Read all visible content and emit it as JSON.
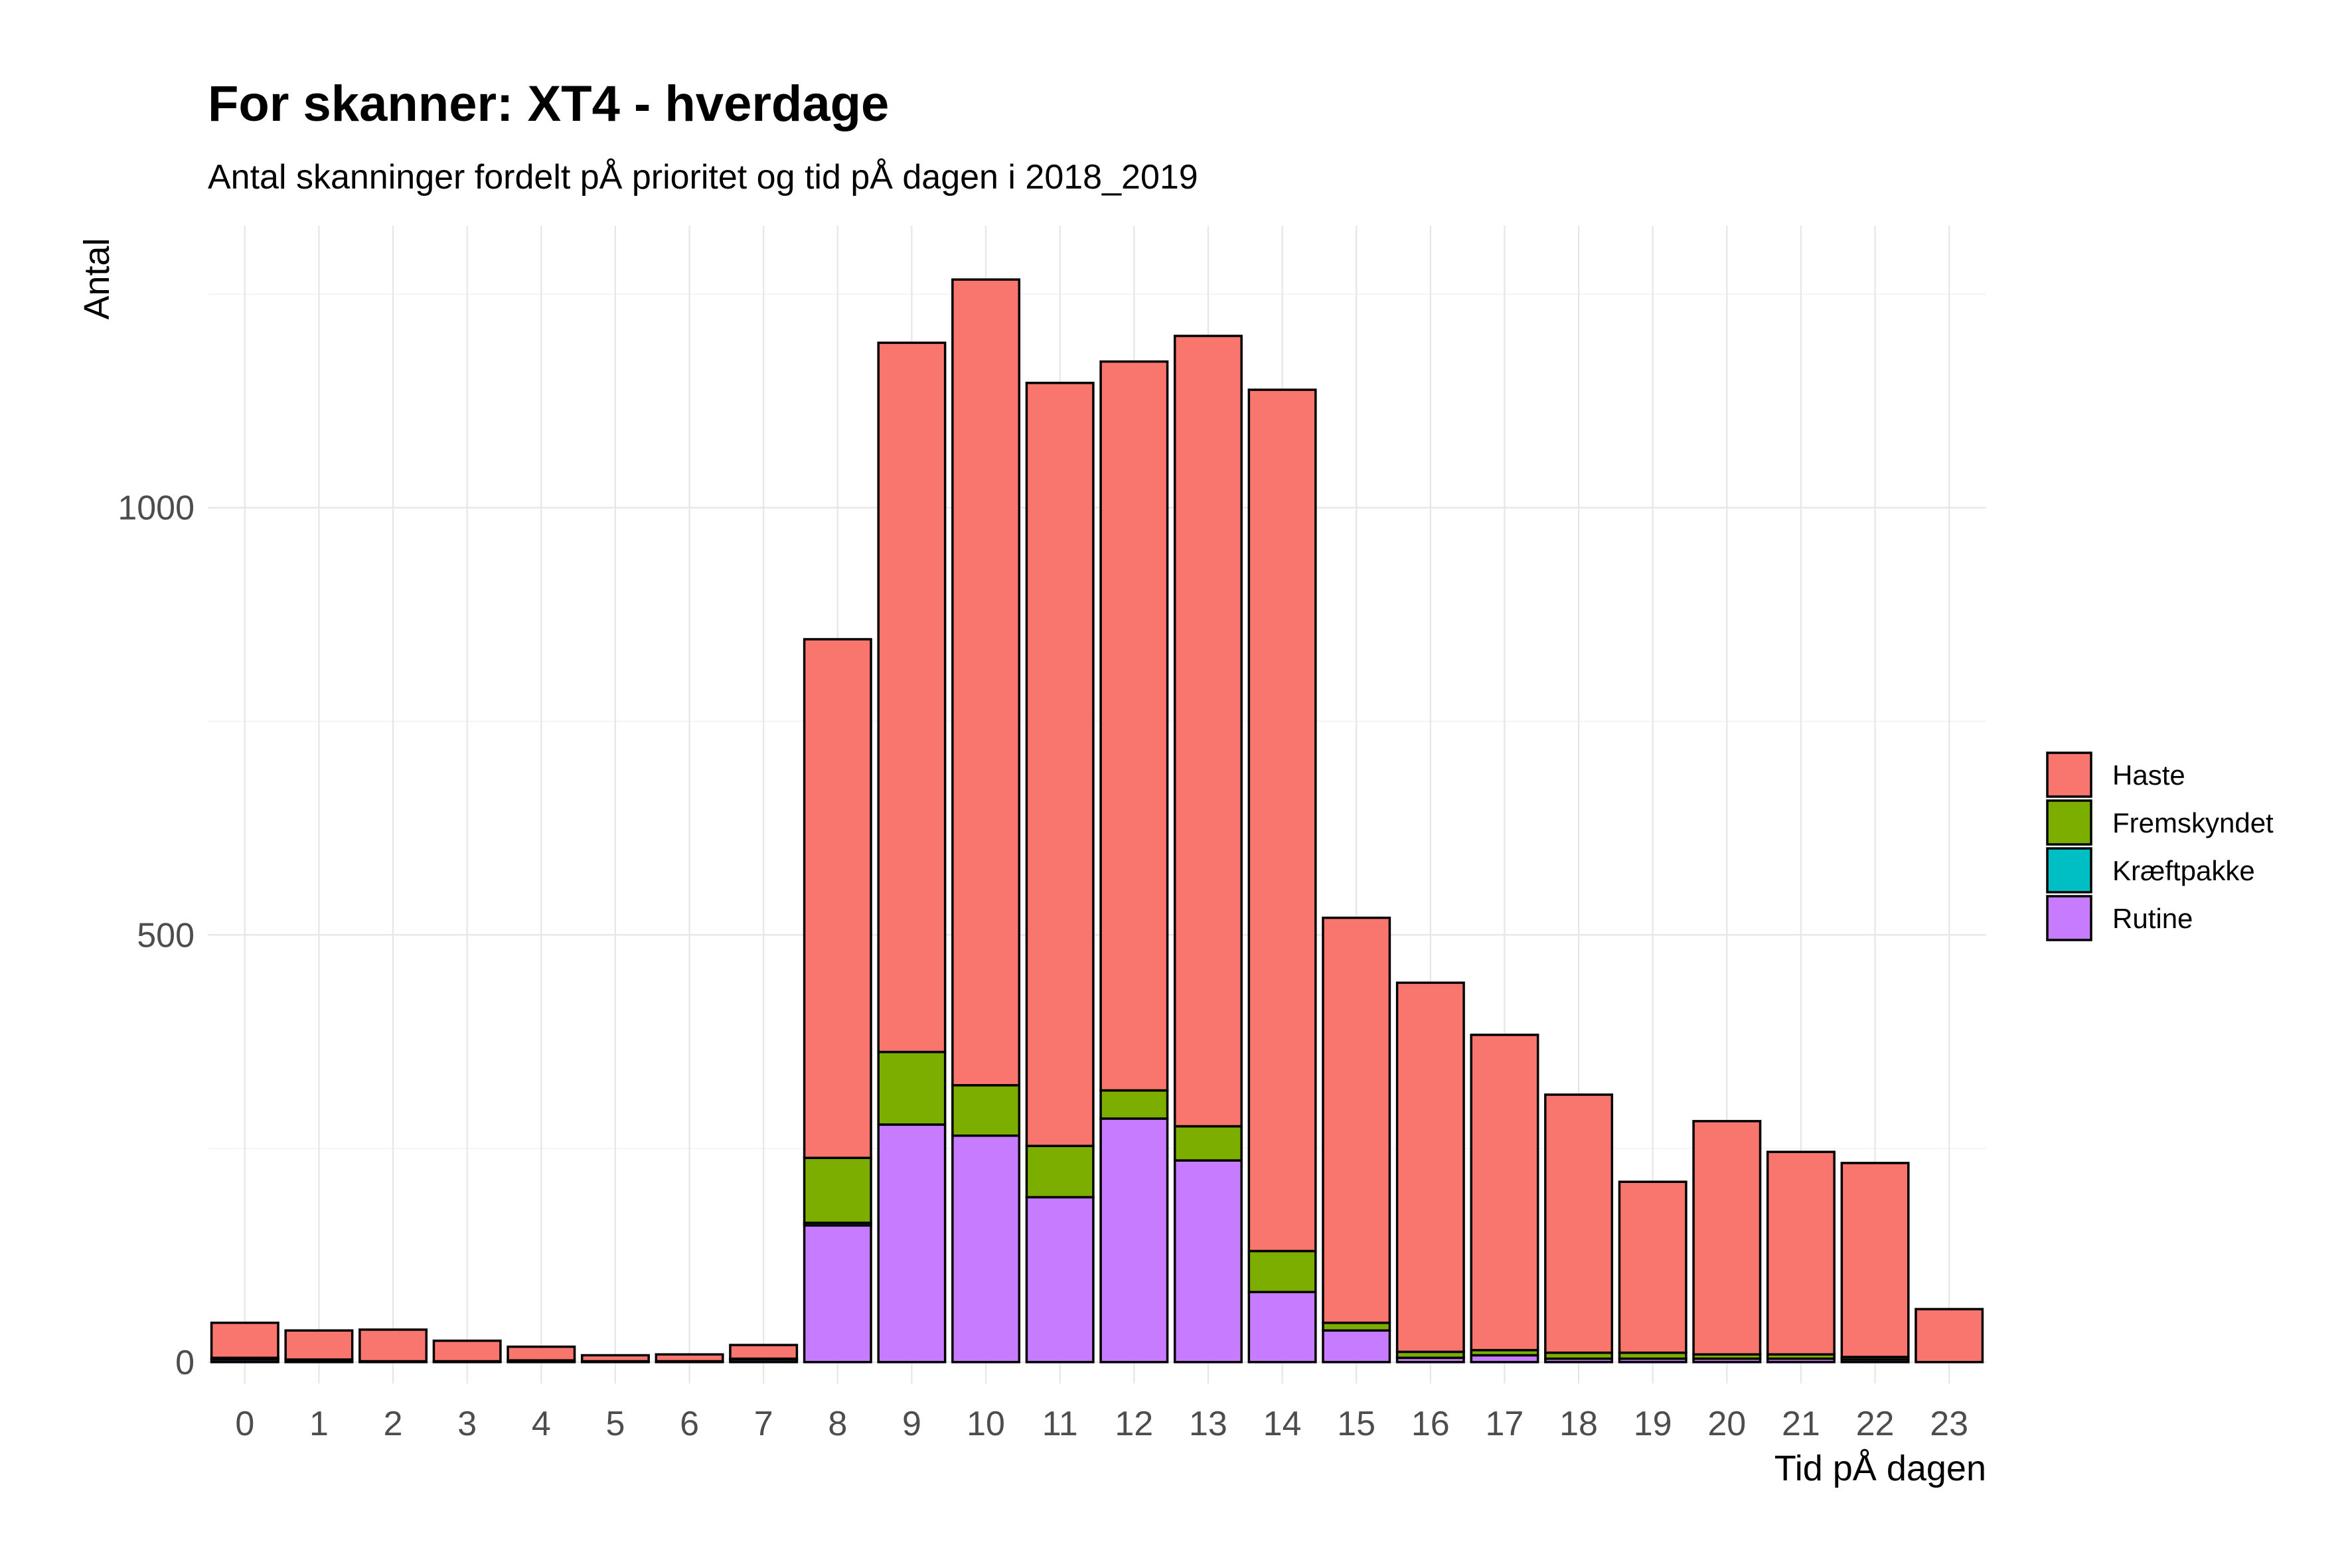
{
  "chart_data": {
    "type": "bar",
    "stacked": true,
    "title": "For skanner: XT4 - hverdage",
    "subtitle": "Antal skanninger fordelt pÅ prioritet og tid pÅ dagen i 2018_2019",
    "xlabel": "Tid pÅ dagen",
    "ylabel": "Antal",
    "categories": [
      "0",
      "1",
      "2",
      "3",
      "4",
      "5",
      "6",
      "7",
      "8",
      "9",
      "10",
      "11",
      "12",
      "13",
      "14",
      "15",
      "16",
      "17",
      "18",
      "19",
      "20",
      "21",
      "22",
      "23"
    ],
    "ylim": [
      -25,
      1330
    ],
    "yticks": [
      0,
      500,
      1000
    ],
    "grid": true,
    "legend_position": "right",
    "series": [
      {
        "name": "Rutine",
        "color": "#C77CFF",
        "values": [
          3,
          2,
          1,
          1,
          2,
          1,
          1,
          3,
          160,
          278,
          265,
          193,
          285,
          236,
          82,
          37,
          5,
          8,
          4,
          4,
          4,
          4,
          3,
          0
        ]
      },
      {
        "name": "Kræftpakke",
        "color": "#00BFC4",
        "values": [
          0,
          0,
          0,
          0,
          0,
          0,
          0,
          0,
          3,
          0,
          0,
          0,
          0,
          0,
          0,
          0,
          0,
          0,
          0,
          0,
          0,
          0,
          0,
          0
        ]
      },
      {
        "name": "Fremskyndet",
        "color": "#7CAE00",
        "values": [
          2,
          1,
          0,
          0,
          0,
          0,
          0,
          1,
          76,
          85,
          59,
          60,
          33,
          40,
          48,
          9,
          7,
          6,
          7,
          7,
          5,
          5,
          3,
          0
        ]
      },
      {
        "name": "Haste",
        "color": "#F8766D",
        "values": [
          41,
          34,
          37,
          24,
          16,
          7,
          8,
          16,
          607,
          830,
          943,
          893,
          853,
          925,
          1008,
          474,
          432,
          369,
          302,
          200,
          273,
          237,
          227,
          62
        ]
      }
    ],
    "legend": [
      "Haste",
      "Fremskyndet",
      "Kræftpakke",
      "Rutine"
    ]
  }
}
